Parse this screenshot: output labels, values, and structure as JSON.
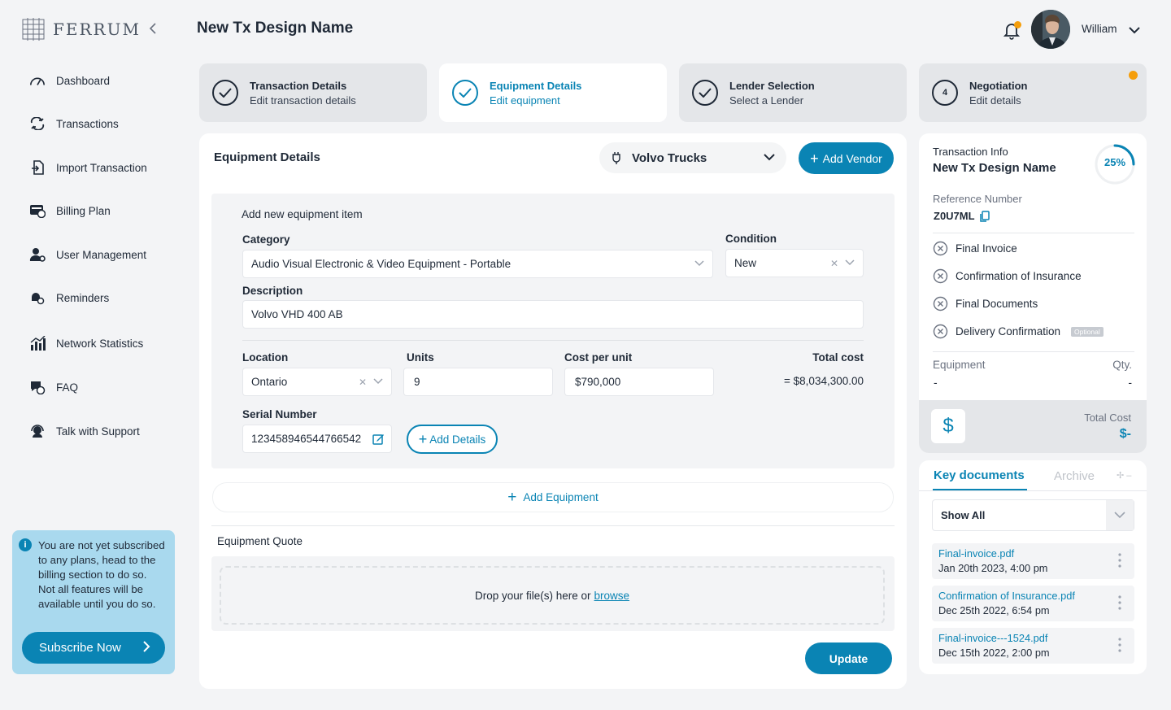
{
  "app": {
    "brand": "FERRUM",
    "accent": "#0a84b4",
    "warning": "#f59e0b"
  },
  "sidebar": {
    "items": [
      {
        "label": "Dashboard",
        "icon": "gauge-icon"
      },
      {
        "label": "Transactions",
        "icon": "exchange-icon"
      },
      {
        "label": "Import Transaction",
        "icon": "import-icon"
      },
      {
        "label": "Billing Plan",
        "icon": "billing-icon"
      },
      {
        "label": "User Management",
        "icon": "user-gear-icon"
      },
      {
        "label": "Reminders",
        "icon": "reminder-icon"
      },
      {
        "label": "Network Statistics",
        "icon": "bar-chart-icon"
      },
      {
        "label": "FAQ",
        "icon": "faq-icon"
      },
      {
        "label": "Talk with Support",
        "icon": "support-icon"
      }
    ],
    "notice": {
      "text": "You are not yet subscribed to any plans, head to the billing section to do so. Not all features will be available until you do so.",
      "button": "Subscribe Now"
    }
  },
  "header": {
    "title": "New Tx Design Name",
    "user": "William"
  },
  "steps": [
    {
      "title": "Transaction Details",
      "subtitle": "Edit transaction details",
      "state": "done"
    },
    {
      "title": "Equipment Details",
      "subtitle": "Edit equipment",
      "state": "active"
    },
    {
      "title": "Lender Selection",
      "subtitle": "Select a Lender",
      "state": "done"
    },
    {
      "title": "Negotiation",
      "subtitle": "Edit details",
      "state": "pending",
      "number": "4"
    }
  ],
  "equipment": {
    "title": "Equipment Details",
    "vendor": "Volvo Trucks",
    "add_vendor": "Add Vendor",
    "add_new_label": "Add new equipment item",
    "category": {
      "label": "Category",
      "value": "Audio Visual Electronic & Video Equipment - Portable"
    },
    "condition": {
      "label": "Condition",
      "value": "New"
    },
    "description": {
      "label": "Description",
      "value": "Volvo VHD 400 AB"
    },
    "location": {
      "label": "Location",
      "value": "Ontario"
    },
    "units": {
      "label": "Units",
      "value": "9"
    },
    "cost_per_unit": {
      "label": "Cost per unit",
      "value": "$790,000"
    },
    "total_cost": {
      "label": "Total cost",
      "value": "= $8,034,300.00"
    },
    "serial": {
      "label": "Serial Number",
      "value": "123458946544766542"
    },
    "add_details": "Add Details",
    "add_equipment": "Add Equipment",
    "quote_label": "Equipment Quote",
    "drop_text": "Drop your file(s) here or",
    "browse": "browse",
    "update": "Update"
  },
  "info": {
    "label": "Transaction Info",
    "name": "New Tx Design Name",
    "progress": 25,
    "progress_text": "25%",
    "ref_label": "Reference Number",
    "ref_value": "Z0U7ML",
    "docs": [
      {
        "label": "Final Invoice"
      },
      {
        "label": "Confirmation of Insurance"
      },
      {
        "label": "Final Documents"
      },
      {
        "label": "Delivery Confirmation",
        "badge": "Optional"
      }
    ],
    "equipment_label": "Equipment",
    "qty_label": "Qty.",
    "equipment_value": "-",
    "qty_value": "-",
    "total_cost_label": "Total Cost",
    "total_cost_value": "$-"
  },
  "documents": {
    "tab_key": "Key documents",
    "tab_archive": "Archive",
    "filter": "Show All",
    "files": [
      {
        "name": "Final-invoice.pdf",
        "date": "Jan 20th 2023, 4:00 pm"
      },
      {
        "name": "Confirmation of Insurance.pdf",
        "date": "Dec 25th 2022, 6:54 pm"
      },
      {
        "name": "Final-invoice---1524.pdf",
        "date": "Dec 15th 2022, 2:00 pm"
      }
    ]
  }
}
